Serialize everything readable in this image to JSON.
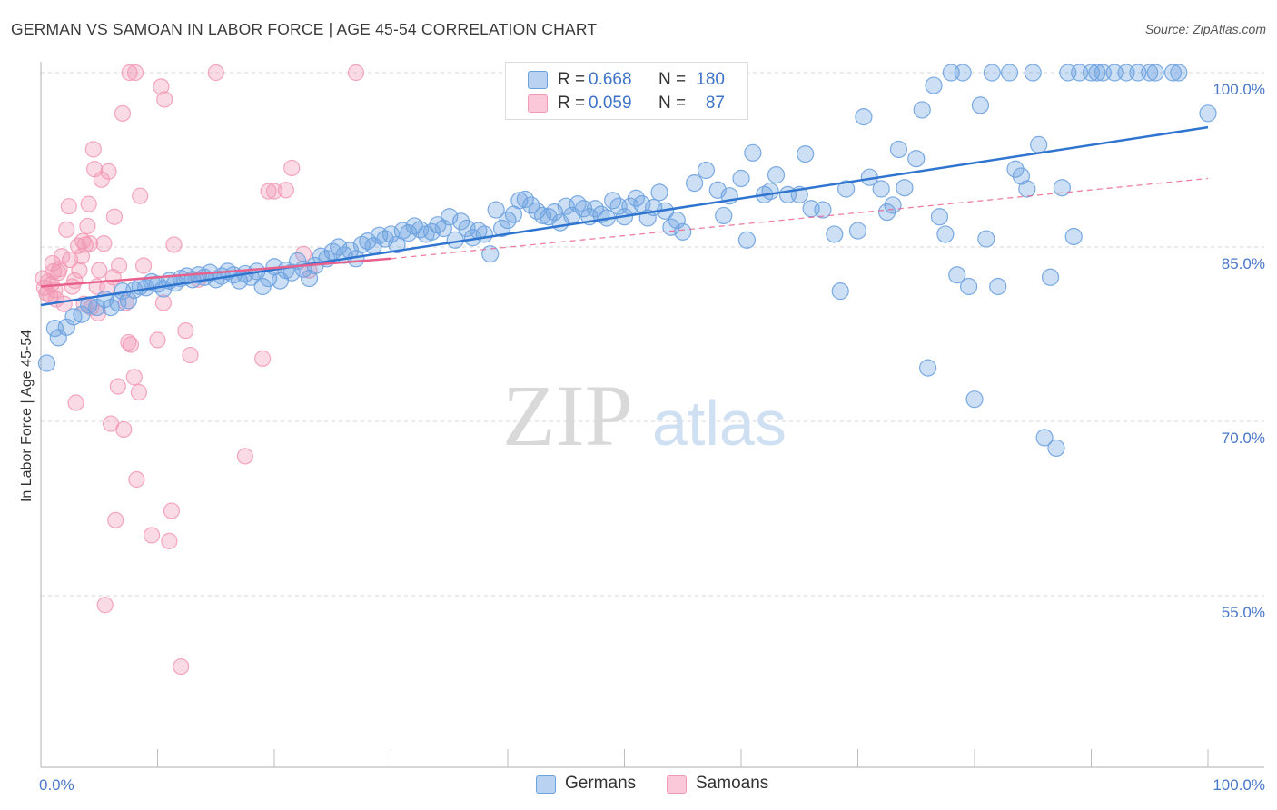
{
  "header": {
    "title": "GERMAN VS SAMOAN IN LABOR FORCE | AGE 45-54 CORRELATION CHART",
    "source": "Source: ZipAtlas.com"
  },
  "watermark": {
    "zip": "ZIP",
    "atlas": "atlas"
  },
  "legend": {
    "r_label": "R =",
    "n_label": "N =",
    "rows": [
      {
        "r": "0.668",
        "n": "180"
      },
      {
        "r": "0.059",
        "n": "87"
      }
    ]
  },
  "bottom_legend": [
    "Germans",
    "Samoans"
  ],
  "chart_data": {
    "type": "scatter",
    "title": "GERMAN VS SAMOAN IN LABOR FORCE | AGE 45-54 CORRELATION CHART",
    "ylabel": "In Labor Force | Age 45-54",
    "xlabel": "",
    "xlim": [
      0,
      100
    ],
    "ylim": [
      40,
      101
    ],
    "x_tick_labels": [
      {
        "value": 0,
        "label": "0.0%"
      },
      {
        "value": 100,
        "label": "100.0%"
      }
    ],
    "y_tick_labels": [
      {
        "value": 55,
        "label": "55.0%"
      },
      {
        "value": 70,
        "label": "70.0%"
      },
      {
        "value": 85,
        "label": "85.0%"
      },
      {
        "value": 100,
        "label": "100.0%"
      }
    ],
    "grid": "horizontal dashed",
    "colors": {
      "german": "#6ea2e0",
      "german_line": "#2f75d0",
      "samoan": "#f298b4",
      "samoan_line": "#e8608c"
    },
    "series": [
      {
        "name": "Germans",
        "trend": {
          "x": [
            0,
            100
          ],
          "y": [
            80.0,
            95.3
          ],
          "style": "solid"
        },
        "points": [
          [
            0.5,
            75
          ],
          [
            1.2,
            78
          ],
          [
            1.5,
            77.2
          ],
          [
            2.2,
            78.1
          ],
          [
            2.8,
            79
          ],
          [
            3.5,
            79.2
          ],
          [
            4.1,
            80
          ],
          [
            4.8,
            79.8
          ],
          [
            5.5,
            80.5
          ],
          [
            6,
            79.8
          ],
          [
            6.6,
            80.2
          ],
          [
            7,
            81.2
          ],
          [
            7.5,
            80.4
          ],
          [
            8,
            81.3
          ],
          [
            8.5,
            81.6
          ],
          [
            9,
            81.5
          ],
          [
            9.5,
            82
          ],
          [
            10,
            81.8
          ],
          [
            10.5,
            81.4
          ],
          [
            11,
            82.1
          ],
          [
            11.5,
            81.9
          ],
          [
            12,
            82.3
          ],
          [
            12.5,
            82.5
          ],
          [
            13,
            82.2
          ],
          [
            13.5,
            82.6
          ],
          [
            14,
            82.4
          ],
          [
            14.5,
            82.8
          ],
          [
            15,
            82.2
          ],
          [
            15.5,
            82.5
          ],
          [
            16,
            82.9
          ],
          [
            16.5,
            82.6
          ],
          [
            17,
            82.1
          ],
          [
            17.5,
            82.7
          ],
          [
            18,
            82.4
          ],
          [
            18.5,
            82.9
          ],
          [
            19,
            81.6
          ],
          [
            19.5,
            82.3
          ],
          [
            20,
            83.3
          ],
          [
            20.5,
            82.1
          ],
          [
            21,
            83
          ],
          [
            21.5,
            82.8
          ],
          [
            22,
            83.8
          ],
          [
            22.5,
            83.1
          ],
          [
            23,
            82.3
          ],
          [
            23.5,
            83.4
          ],
          [
            24,
            84.2
          ],
          [
            24.5,
            84
          ],
          [
            25,
            84.6
          ],
          [
            25.5,
            85
          ],
          [
            26,
            84.3
          ],
          [
            26.5,
            84.7
          ],
          [
            27,
            84
          ],
          [
            27.5,
            85.2
          ],
          [
            28,
            85.5
          ],
          [
            28.5,
            85.1
          ],
          [
            29,
            86
          ],
          [
            29.5,
            85.7
          ],
          [
            30,
            86.1
          ],
          [
            30.5,
            85.2
          ],
          [
            31,
            86.4
          ],
          [
            31.5,
            86.2
          ],
          [
            32,
            86.8
          ],
          [
            32.5,
            86.5
          ],
          [
            33,
            86.1
          ],
          [
            33.5,
            86.3
          ],
          [
            34,
            86.9
          ],
          [
            34.5,
            86.6
          ],
          [
            35,
            87.6
          ],
          [
            35.5,
            85.6
          ],
          [
            36,
            87.2
          ],
          [
            36.5,
            86.6
          ],
          [
            37,
            85.8
          ],
          [
            37.5,
            86.4
          ],
          [
            38,
            86.1
          ],
          [
            38.5,
            84.4
          ],
          [
            39,
            88.2
          ],
          [
            39.5,
            86.6
          ],
          [
            40,
            87.3
          ],
          [
            40.5,
            87.8
          ],
          [
            41,
            89
          ],
          [
            41.5,
            89.1
          ],
          [
            42,
            88.6
          ],
          [
            42.5,
            88.1
          ],
          [
            43,
            87.7
          ],
          [
            43.5,
            87.6
          ],
          [
            44,
            88
          ],
          [
            44.5,
            87.1
          ],
          [
            45,
            88.5
          ],
          [
            45.5,
            87.7
          ],
          [
            46,
            88.7
          ],
          [
            46.5,
            88.3
          ],
          [
            47,
            87.6
          ],
          [
            47.5,
            88.3
          ],
          [
            48,
            87.8
          ],
          [
            48.5,
            87.5
          ],
          [
            49,
            89
          ],
          [
            49.5,
            88.5
          ],
          [
            50,
            87.6
          ],
          [
            50.5,
            88.5
          ],
          [
            51,
            89.2
          ],
          [
            51.5,
            88.7
          ],
          [
            52,
            87.5
          ],
          [
            52.5,
            88.4
          ],
          [
            53,
            89.7
          ],
          [
            53.5,
            88.1
          ],
          [
            54,
            86.7
          ],
          [
            54.5,
            87.3
          ],
          [
            55,
            86.3
          ],
          [
            56,
            90.5
          ],
          [
            57,
            91.6
          ],
          [
            58,
            89.9
          ],
          [
            58.5,
            87.7
          ],
          [
            59,
            89.4
          ],
          [
            60,
            90.9
          ],
          [
            60.5,
            85.6
          ],
          [
            61,
            93.1
          ],
          [
            62,
            89.5
          ],
          [
            62.5,
            89.8
          ],
          [
            63,
            91.2
          ],
          [
            64,
            89.5
          ],
          [
            65,
            89.5
          ],
          [
            65.5,
            93
          ],
          [
            66,
            88.3
          ],
          [
            67,
            88.2
          ],
          [
            68,
            86.1
          ],
          [
            68.5,
            81.2
          ],
          [
            69,
            90
          ],
          [
            70,
            86.4
          ],
          [
            70.5,
            96.2
          ],
          [
            71,
            91
          ],
          [
            72,
            90
          ],
          [
            72.5,
            88
          ],
          [
            73,
            88.6
          ],
          [
            73.5,
            93.4
          ],
          [
            74,
            90.1
          ],
          [
            75,
            92.6
          ],
          [
            75.5,
            96.8
          ],
          [
            76,
            74.6
          ],
          [
            76.5,
            98.9
          ],
          [
            77,
            87.6
          ],
          [
            77.5,
            86.1
          ],
          [
            78,
            100
          ],
          [
            78.5,
            82.6
          ],
          [
            79,
            100
          ],
          [
            79.5,
            81.6
          ],
          [
            80,
            71.9
          ],
          [
            80.5,
            97.2
          ],
          [
            81,
            85.7
          ],
          [
            81.5,
            100
          ],
          [
            82,
            81.6
          ],
          [
            83,
            100
          ],
          [
            83.5,
            91.7
          ],
          [
            84,
            91.1
          ],
          [
            84.5,
            90
          ],
          [
            85,
            100
          ],
          [
            85.5,
            93.8
          ],
          [
            86,
            68.6
          ],
          [
            86.5,
            82.4
          ],
          [
            87,
            67.7
          ],
          [
            87.5,
            90.1
          ],
          [
            88,
            100
          ],
          [
            88.5,
            85.9
          ],
          [
            89,
            100
          ],
          [
            90,
            100
          ],
          [
            90.5,
            100
          ],
          [
            91,
            100
          ],
          [
            92,
            100
          ],
          [
            93,
            100
          ],
          [
            94,
            100
          ],
          [
            95,
            100
          ],
          [
            95.5,
            100
          ],
          [
            97,
            100
          ],
          [
            97.5,
            100
          ],
          [
            100,
            96.5
          ]
        ]
      },
      {
        "name": "Samoans",
        "trend": {
          "x": [
            0,
            30
          ],
          "y": [
            81.6,
            84
          ],
          "x_dashed": [
            30,
            100
          ],
          "y_dashed": [
            84,
            90.9
          ]
        },
        "points": [
          [
            0.2,
            82.3
          ],
          [
            0.3,
            81.5
          ],
          [
            0.5,
            81
          ],
          [
            0.6,
            82
          ],
          [
            0.8,
            80.8
          ],
          [
            0.9,
            81.8
          ],
          [
            1,
            83.6
          ],
          [
            1.1,
            82.9
          ],
          [
            1.2,
            81.3
          ],
          [
            1.3,
            80.5
          ],
          [
            1.5,
            82.8
          ],
          [
            1.6,
            83.1
          ],
          [
            1.8,
            84.2
          ],
          [
            2,
            80.1
          ],
          [
            2.2,
            86.5
          ],
          [
            2.4,
            88.5
          ],
          [
            2.5,
            83.9
          ],
          [
            2.7,
            81.6
          ],
          [
            2.9,
            82.1
          ],
          [
            3,
            71.6
          ],
          [
            3.2,
            85.1
          ],
          [
            3.3,
            83
          ],
          [
            3.5,
            84.2
          ],
          [
            3.6,
            85.5
          ],
          [
            3.7,
            80.1
          ],
          [
            3.8,
            85.2
          ],
          [
            4,
            86.8
          ],
          [
            4.1,
            88.7
          ],
          [
            4.2,
            85.3
          ],
          [
            4.3,
            79.8
          ],
          [
            4.5,
            93.4
          ],
          [
            4.6,
            91.7
          ],
          [
            4.8,
            81.6
          ],
          [
            4.9,
            79.3
          ],
          [
            5,
            83
          ],
          [
            5.2,
            90.8
          ],
          [
            5.4,
            85.3
          ],
          [
            5.5,
            54.2
          ],
          [
            5.7,
            81.5
          ],
          [
            5.8,
            91.5
          ],
          [
            6,
            69.8
          ],
          [
            6.2,
            82.4
          ],
          [
            6.3,
            87.6
          ],
          [
            6.4,
            61.5
          ],
          [
            6.6,
            73
          ],
          [
            6.7,
            83.4
          ],
          [
            7,
            96.5
          ],
          [
            7.1,
            69.3
          ],
          [
            7.3,
            80.2
          ],
          [
            7.5,
            76.8
          ],
          [
            7.6,
            100
          ],
          [
            7.7,
            76.6
          ],
          [
            8,
            73.8
          ],
          [
            8.1,
            100
          ],
          [
            8.2,
            65
          ],
          [
            8.4,
            72.5
          ],
          [
            8.5,
            89.4
          ],
          [
            8.8,
            83.4
          ],
          [
            9.5,
            60.2
          ],
          [
            10,
            77
          ],
          [
            10.3,
            98.8
          ],
          [
            10.5,
            80.2
          ],
          [
            10.6,
            97.7
          ],
          [
            11,
            59.7
          ],
          [
            11.2,
            62.3
          ],
          [
            11.4,
            85.2
          ],
          [
            12,
            48.9
          ],
          [
            12.4,
            77.8
          ],
          [
            12.8,
            75.7
          ],
          [
            13.5,
            82.2
          ],
          [
            15,
            100
          ],
          [
            17.5,
            67
          ],
          [
            19,
            75.4
          ],
          [
            19.5,
            89.8
          ],
          [
            20,
            89.8
          ],
          [
            21,
            89.9
          ],
          [
            21.5,
            91.8
          ],
          [
            22.5,
            84.4
          ],
          [
            23,
            83
          ],
          [
            27,
            100
          ]
        ]
      }
    ]
  }
}
